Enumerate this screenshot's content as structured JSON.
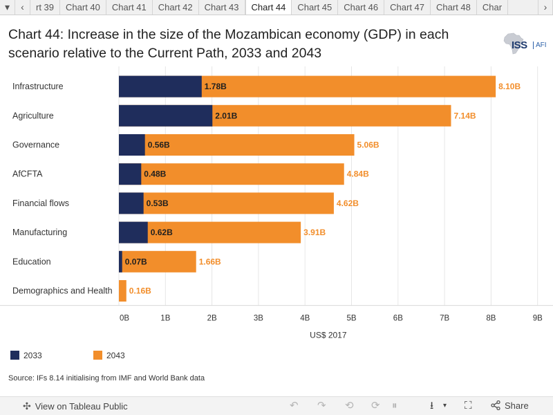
{
  "tabs": {
    "items": [
      "rt 39",
      "Chart 40",
      "Chart 41",
      "Chart 42",
      "Chart 43",
      "Chart 44",
      "Chart 45",
      "Chart 46",
      "Chart 47",
      "Chart 48",
      "Char"
    ],
    "active": "Chart 44",
    "prev_dropdown_icon": "▾",
    "prev_icon": "‹",
    "next_icon": "›"
  },
  "title": "Chart 44: Increase in the size of the Mozambican economy (GDP) in each scenario relative to the Current Path, 2033 and 2043",
  "logo": {
    "iss": "ISS",
    "afi": "AFI"
  },
  "chart_data": {
    "type": "bar",
    "orientation": "horizontal",
    "stacked": false,
    "overlaid": true,
    "title": "Chart 44: Increase in the size of the Mozambican economy (GDP) in each scenario relative to the Current Path, 2033 and 2043",
    "categories": [
      "Infrastructure",
      "Agriculture",
      "Governance",
      "AfCFTA",
      "Financial flows",
      "Manufacturing",
      "Education",
      "Demographics and Health"
    ],
    "series": [
      {
        "name": "2043",
        "color": "#f28e2b",
        "values": [
          8.1,
          7.14,
          5.06,
          4.84,
          4.62,
          3.91,
          1.66,
          0.16
        ],
        "labels": [
          "8.10B",
          "7.14B",
          "5.06B",
          "4.84B",
          "4.62B",
          "3.91B",
          "1.66B",
          "0.16B"
        ]
      },
      {
        "name": "2033",
        "color": "#1f2d5c",
        "values": [
          1.78,
          2.01,
          0.56,
          0.48,
          0.53,
          0.62,
          0.07,
          null
        ],
        "labels": [
          "1.78B",
          "2.01B",
          "0.56B",
          "0.48B",
          "0.53B",
          "0.62B",
          "0.07B",
          null
        ]
      }
    ],
    "xlabel": "US$ 2017",
    "ylabel": "",
    "xlim": [
      0,
      9
    ],
    "xticks": [
      "0B",
      "1B",
      "2B",
      "3B",
      "4B",
      "5B",
      "6B",
      "7B",
      "8B",
      "9B"
    ],
    "grid": true
  },
  "legend": [
    {
      "label": "2033",
      "color": "#1f2d5c"
    },
    {
      "label": "2043",
      "color": "#f28e2b"
    }
  ],
  "source": "Source: IFs 8.14 initialising from IMF and World Bank data",
  "toolbar": {
    "view_label": "View on Tableau Public",
    "share_label": "Share",
    "undo_icon": "↶",
    "redo_icon": "↷",
    "revert_icon": "⟲",
    "refresh_icon": "⟳",
    "pause_icon": "⏸",
    "download_icon": "⭳",
    "fullscreen_icon": "⛶",
    "share_icon": "⋖",
    "tableau_icon": "✣"
  }
}
